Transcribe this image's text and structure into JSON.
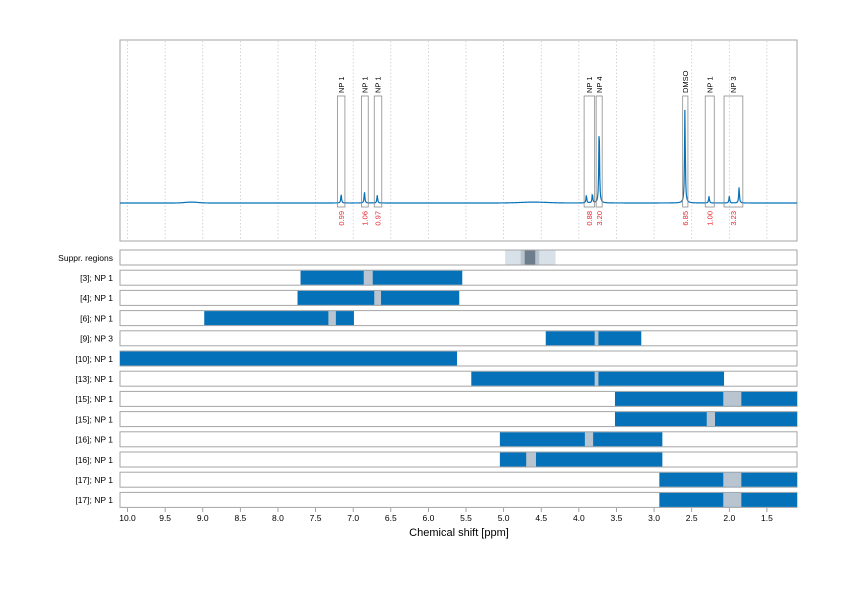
{
  "chart_data": {
    "type": "nmr_spectrum_with_regions",
    "xlabel": "Chemical shift [ppm]",
    "x_range": [
      10.1,
      1.1
    ],
    "x_ticks": [
      "10.0",
      "9.5",
      "9.0",
      "8.5",
      "8.0",
      "7.5",
      "7.0",
      "6.5",
      "6.0",
      "5.5",
      "5.0",
      "4.5",
      "4.0",
      "3.5",
      "3.0",
      "2.5",
      "2.0",
      "1.5"
    ],
    "spectrum": {
      "peaks": [
        {
          "ppm": 7.16,
          "height": 0.08
        },
        {
          "ppm": 6.85,
          "height": 0.1
        },
        {
          "ppm": 6.68,
          "height": 0.07
        },
        {
          "ppm": 3.9,
          "height": 0.07
        },
        {
          "ppm": 3.82,
          "height": 0.08
        },
        {
          "ppm": 3.73,
          "height": 0.7
        },
        {
          "ppm": 2.59,
          "height": 0.84
        },
        {
          "ppm": 2.27,
          "height": 0.06
        },
        {
          "ppm": 2.0,
          "height": 0.06
        },
        {
          "ppm": 1.87,
          "height": 0.14
        }
      ],
      "integral_boxes": [
        {
          "label": "NP 1",
          "start": 7.21,
          "end": 7.11,
          "value": "0.99"
        },
        {
          "label": "NP 1",
          "start": 6.89,
          "end": 6.8,
          "value": "1.06"
        },
        {
          "label": "NP 1",
          "start": 6.72,
          "end": 6.62,
          "value": "0.97"
        },
        {
          "label": "NP 1",
          "start": 3.93,
          "end": 3.79,
          "value": "0.88"
        },
        {
          "label": "NP 4",
          "start": 3.77,
          "end": 3.69,
          "value": "3.20"
        },
        {
          "label": "DMSO",
          "start": 2.62,
          "end": 2.55,
          "value": "6.85"
        },
        {
          "label": "NP 1",
          "start": 2.32,
          "end": 2.2,
          "value": "1.00"
        },
        {
          "label": "NP 3",
          "start": 2.07,
          "end": 1.82,
          "value": "3.23"
        }
      ]
    },
    "regions": [
      {
        "label": "Suppr. regions",
        "kind": "suppressed",
        "light": [
          4.98,
          4.31
        ],
        "dark": [
          4.72,
          4.58
        ]
      },
      {
        "label": "[3]; NP 1",
        "segments": [
          [
            7.7,
            5.55
          ]
        ],
        "gaps": [
          [
            6.86,
            6.74
          ]
        ]
      },
      {
        "label": "[4]; NP 1",
        "segments": [
          [
            7.74,
            5.59
          ]
        ],
        "gaps": [
          [
            6.72,
            6.63
          ]
        ]
      },
      {
        "label": "[6]; NP 1",
        "segments": [
          [
            8.98,
            6.99
          ]
        ],
        "gaps": [
          [
            7.33,
            7.23
          ]
        ]
      },
      {
        "label": "[9]; NP 3",
        "segments": [
          [
            4.44,
            3.17
          ]
        ],
        "gaps": [
          [
            3.79,
            3.74
          ]
        ]
      },
      {
        "label": "[10]; NP 1",
        "segments": [
          [
            10.1,
            5.62
          ]
        ],
        "gaps": []
      },
      {
        "label": "[13]; NP 1",
        "segments": [
          [
            5.43,
            2.07
          ]
        ],
        "gaps": [
          [
            3.79,
            3.74
          ]
        ]
      },
      {
        "label": "[15]; NP 1",
        "segments": [
          [
            3.52,
            1.1
          ]
        ],
        "gaps": [
          [
            2.08,
            1.84
          ]
        ]
      },
      {
        "label": "[15]; NP 1",
        "segments": [
          [
            3.52,
            1.1
          ]
        ],
        "gaps": [
          [
            2.3,
            2.19
          ]
        ]
      },
      {
        "label": "[16]; NP 1",
        "segments": [
          [
            5.05,
            2.89
          ]
        ],
        "gaps": [
          [
            3.92,
            3.81
          ]
        ]
      },
      {
        "label": "[16]; NP 1",
        "segments": [
          [
            5.05,
            2.89
          ]
        ],
        "gaps": [
          [
            4.7,
            4.57
          ]
        ]
      },
      {
        "label": "[17]; NP 1",
        "segments": [
          [
            2.93,
            1.1
          ]
        ],
        "gaps": [
          [
            2.08,
            1.84
          ]
        ]
      },
      {
        "label": "[17]; NP 1",
        "segments": [
          [
            2.93,
            1.1
          ]
        ],
        "gaps": [
          [
            2.08,
            1.84
          ]
        ]
      }
    ],
    "colors": {
      "region": "#0571b9",
      "gap": "#b8c4cf",
      "suppr_light": "#d8e0e8",
      "suppr_mid": "#b7c3ce",
      "suppr_dark": "#6e7d8b",
      "spectrum_line": "#0571b9",
      "integral_text": "#e8262d",
      "frame": "#a6a6a6",
      "grid": "#c4c4c4"
    }
  }
}
